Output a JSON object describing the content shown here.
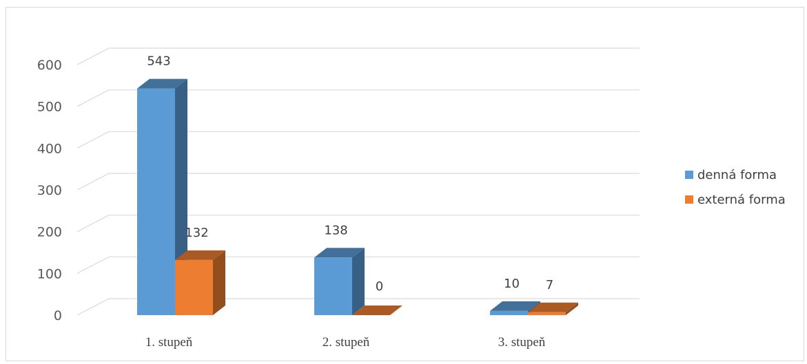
{
  "chart_data": {
    "type": "bar",
    "style": "3d-clustered-column",
    "categories": [
      "1. stupeň",
      "2. stupeň",
      "3. stupeň"
    ],
    "series": [
      {
        "name": "denná forma",
        "values": [
          543,
          138,
          10
        ],
        "color": "#5b9bd5"
      },
      {
        "name": "externá forma",
        "values": [
          132,
          0,
          7
        ],
        "color": "#ed7d31"
      }
    ],
    "yticks": [
      0,
      100,
      200,
      300,
      400,
      500,
      600
    ],
    "ylim": [
      0,
      600
    ],
    "grid": true,
    "legend": "right",
    "data_labels": true
  }
}
